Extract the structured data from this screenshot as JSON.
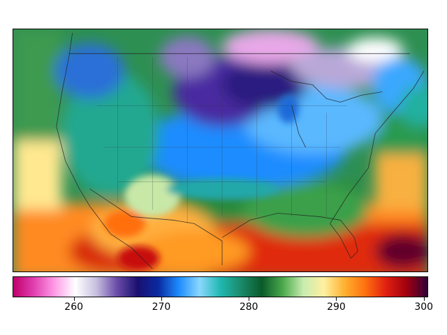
{
  "map": {
    "region": "contiguous-united-states",
    "variable_unit": "",
    "palette": [
      "#c0006a",
      "#e040b0",
      "#ff9ce6",
      "#ffffff",
      "#c8c0e0",
      "#6a4ca8",
      "#1a1070",
      "#0a2aa0",
      "#1e8cff",
      "#8ad8ff",
      "#20b8b0",
      "#1a8a6a",
      "#0a5a2a",
      "#4aa84a",
      "#c8ecb0",
      "#fff0a0",
      "#ffb030",
      "#ff7010",
      "#e02010",
      "#a00010",
      "#30003a"
    ]
  },
  "colorbar": {
    "min": 253,
    "max": 300.5,
    "ticks": [
      {
        "value": 260,
        "label": "260"
      },
      {
        "value": 270,
        "label": "270"
      },
      {
        "value": 280,
        "label": "280"
      },
      {
        "value": 290,
        "label": "290"
      },
      {
        "value": 300,
        "label": "300"
      }
    ]
  }
}
